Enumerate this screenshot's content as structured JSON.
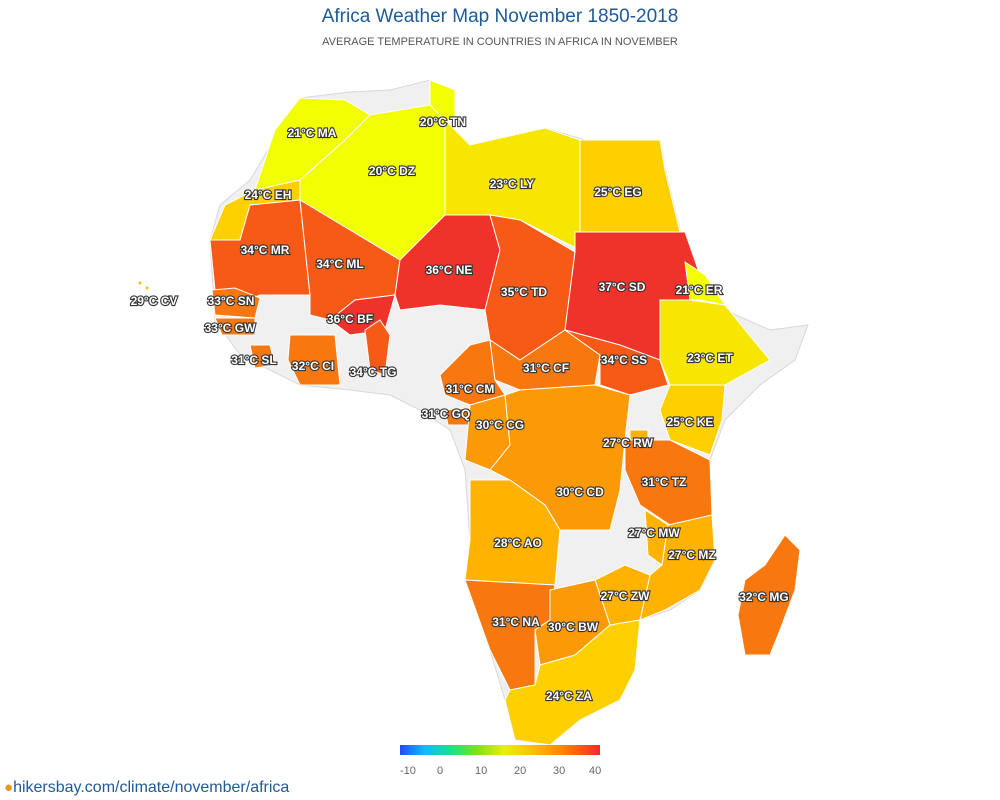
{
  "title": "Africa Weather Map November 1850-2018",
  "subtitle": "AVERAGE TEMPERATURE IN COUNTRIES IN AFRICA IN NOVEMBER",
  "scale": {
    "ticks": [
      "-10",
      "0",
      "10",
      "20",
      "30",
      "40"
    ],
    "colors": [
      "#1f4bff",
      "#17b7ff",
      "#18e08b",
      "#7be020",
      "#e8f000",
      "#ffc000",
      "#ff8a00",
      "#f02a2a"
    ]
  },
  "footer": {
    "icon": "location-pin-icon",
    "url": "hikersbay.com/climate/november/africa"
  },
  "countries": [
    {
      "code": "MA",
      "label": "21°C MA",
      "value": 21
    },
    {
      "code": "TN",
      "label": "20°C TN",
      "value": 20
    },
    {
      "code": "DZ",
      "label": "20°C DZ",
      "value": 20
    },
    {
      "code": "LY",
      "label": "23°C LY",
      "value": 23
    },
    {
      "code": "EG",
      "label": "25°C EG",
      "value": 25
    },
    {
      "code": "EH",
      "label": "24°C EH",
      "value": 24
    },
    {
      "code": "MR",
      "label": "34°C MR",
      "value": 34
    },
    {
      "code": "ML",
      "label": "34°C ML",
      "value": 34
    },
    {
      "code": "NE",
      "label": "36°C NE",
      "value": 36
    },
    {
      "code": "TD",
      "label": "35°C TD",
      "value": 35
    },
    {
      "code": "SD",
      "label": "37°C SD",
      "value": 37
    },
    {
      "code": "ER",
      "label": "21°C ER",
      "value": 21
    },
    {
      "code": "CV",
      "label": "29°C CV",
      "value": 29
    },
    {
      "code": "SN",
      "label": "33°C SN",
      "value": 33
    },
    {
      "code": "GW",
      "label": "33°C GW",
      "value": 33
    },
    {
      "code": "BF",
      "label": "36°C BF",
      "value": 36
    },
    {
      "code": "SL",
      "label": "31°C SL",
      "value": 31
    },
    {
      "code": "CI",
      "label": "32°C CI",
      "value": 32
    },
    {
      "code": "TG",
      "label": "34°C TG",
      "value": 34
    },
    {
      "code": "CM",
      "label": "31°C CM",
      "value": 31
    },
    {
      "code": "CF",
      "label": "31°C CF",
      "value": 31
    },
    {
      "code": "SS",
      "label": "34°C SS",
      "value": 34
    },
    {
      "code": "ET",
      "label": "23°C ET",
      "value": 23
    },
    {
      "code": "GQ",
      "label": "31°C GQ",
      "value": 31
    },
    {
      "code": "CG",
      "label": "30°C CG",
      "value": 30
    },
    {
      "code": "KE",
      "label": "25°C KE",
      "value": 25
    },
    {
      "code": "RW",
      "label": "27°C RW",
      "value": 27
    },
    {
      "code": "CD",
      "label": "30°C CD",
      "value": 30
    },
    {
      "code": "TZ",
      "label": "31°C TZ",
      "value": 31
    },
    {
      "code": "MW",
      "label": "27°C MW",
      "value": 27
    },
    {
      "code": "AO",
      "label": "28°C AO",
      "value": 28
    },
    {
      "code": "MZ",
      "label": "27°C MZ",
      "value": 27
    },
    {
      "code": "ZW",
      "label": "27°C ZW",
      "value": 27
    },
    {
      "code": "MG",
      "label": "32°C MG",
      "value": 32
    },
    {
      "code": "NA",
      "label": "31°C NA",
      "value": 31
    },
    {
      "code": "BW",
      "label": "30°C BW",
      "value": 30
    },
    {
      "code": "ZA",
      "label": "24°C ZA",
      "value": 24
    }
  ]
}
